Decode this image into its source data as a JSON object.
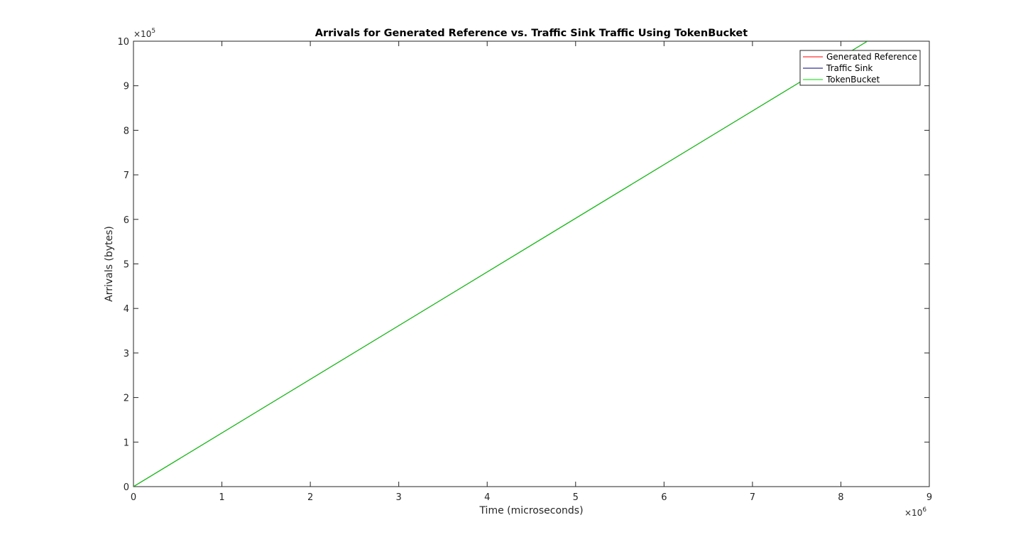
{
  "chart_data": {
    "type": "line",
    "title": "Arrivals for Generated Reference vs. Traffic Sink Traffic Using TokenBucket",
    "xlabel": "Time (microseconds)",
    "ylabel": "Arrivals (bytes)",
    "xlim": [
      0,
      9000000
    ],
    "ylim": [
      0,
      1000000
    ],
    "x_ticks": [
      0,
      1,
      2,
      3,
      4,
      5,
      6,
      7,
      8,
      9
    ],
    "y_ticks": [
      0,
      1,
      2,
      3,
      4,
      5,
      6,
      7,
      8,
      9,
      10
    ],
    "x_exponent": "×10",
    "x_exponent_power": "6",
    "y_exponent": "×10",
    "y_exponent_power": "5",
    "x_tick_scale": 1000000,
    "y_tick_scale": 100000,
    "legend_position": "top-right",
    "grid": false,
    "series": [
      {
        "name": "Generated Reference",
        "color": "#ff0000",
        "x": [
          0,
          8300000
        ],
        "y": [
          0,
          1000000
        ]
      },
      {
        "name": "Traffic Sink",
        "color": "#00007f",
        "x": [
          0,
          8300000
        ],
        "y": [
          0,
          1000000
        ]
      },
      {
        "name": "TokenBucket",
        "color": "#00dd00",
        "x": [
          0,
          8300000
        ],
        "y": [
          0,
          1000000
        ]
      }
    ]
  }
}
